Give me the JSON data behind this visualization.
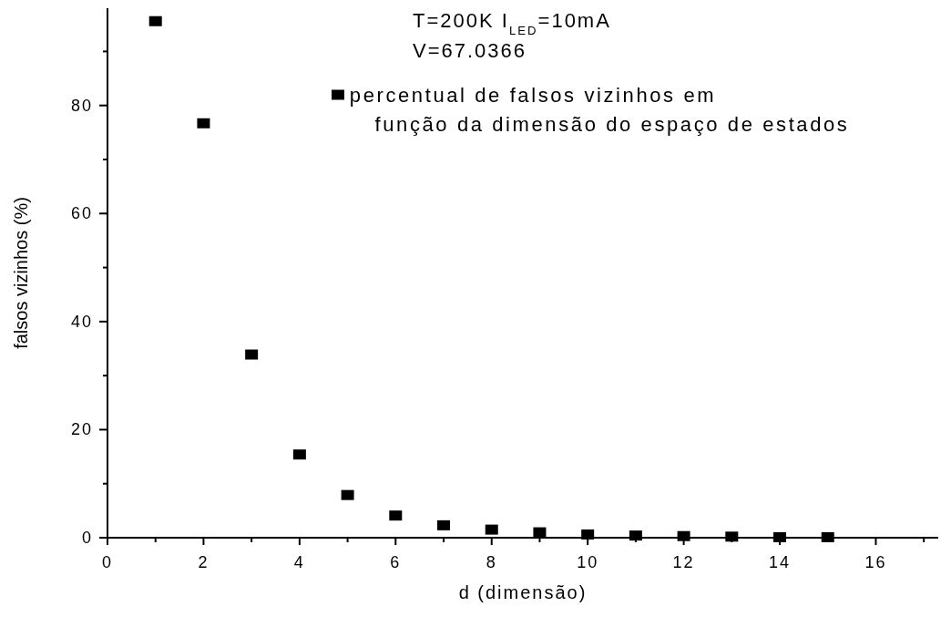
{
  "chart_data": {
    "type": "scatter",
    "xlabel": "d (dimensão)",
    "ylabel": "falsos vizinhos (%)",
    "x": [
      1,
      2,
      3,
      4,
      5,
      6,
      7,
      8,
      9,
      10,
      11,
      12,
      13,
      14,
      15
    ],
    "series": [
      {
        "name": "percentual de falsos vizinhos em função da dimensão do espaço de estados",
        "color": "#000000",
        "values": [
          95.6,
          76.7,
          33.9,
          15.4,
          7.9,
          4.1,
          2.3,
          1.5,
          1.0,
          0.6,
          0.4,
          0.3,
          0.2,
          0.1,
          0.1
        ]
      }
    ],
    "xlim": [
      0,
      17.3
    ],
    "ylim": [
      0,
      98
    ],
    "xticks": [
      0,
      {
        "value": 1,
        "label": null
      },
      2,
      {
        "value": 3,
        "label": null
      },
      4,
      {
        "value": 5,
        "label": null
      },
      6,
      {
        "value": 7,
        "label": null
      },
      8,
      {
        "value": 9,
        "label": null
      },
      10,
      {
        "value": 11,
        "label": null
      },
      12,
      {
        "value": 13,
        "label": null
      },
      14,
      {
        "value": 15,
        "label": null
      },
      16,
      {
        "value": 17,
        "label": null
      }
    ],
    "yticks": [
      0,
      {
        "value": 10,
        "label": null
      },
      20,
      {
        "value": 30,
        "label": null
      },
      40,
      {
        "value": 50,
        "label": null
      },
      60,
      {
        "value": 70,
        "label": null
      },
      80,
      {
        "value": 90,
        "label": null
      }
    ],
    "annotations": [
      "T=200K I$_{LED}$=10mA",
      "V=67.0366"
    ],
    "legend": "top right",
    "marker": "square",
    "grid": false
  }
}
